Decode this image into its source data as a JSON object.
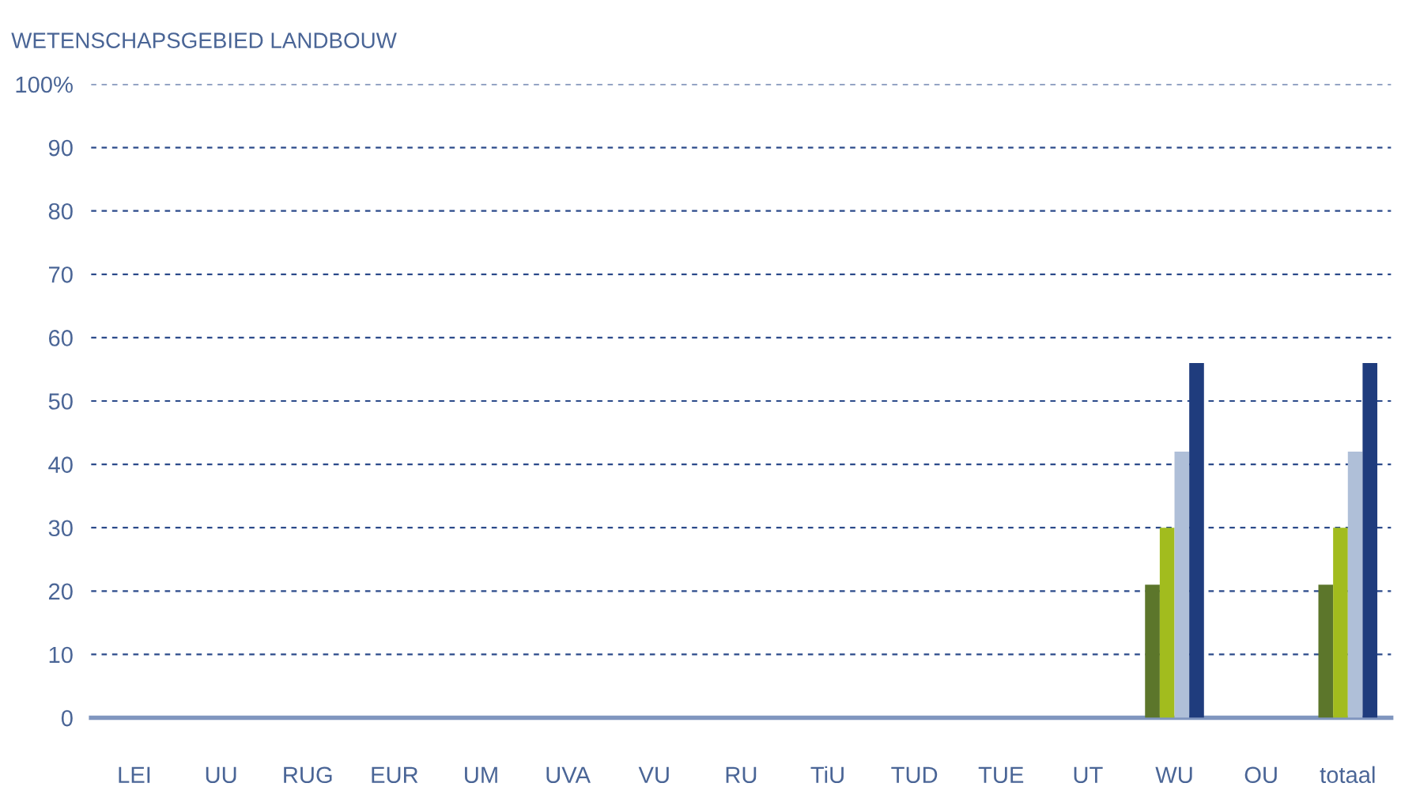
{
  "chart_data": {
    "type": "bar",
    "title": "WETENSCHAPSGEBIED LANDBOUW",
    "categories": [
      "LEI",
      "UU",
      "RUG",
      "EUR",
      "UM",
      "UVA",
      "VU",
      "RU",
      "TiU",
      "TUD",
      "TUE",
      "UT",
      "WU",
      "OU",
      "totaal"
    ],
    "series": [
      {
        "color": "#5c762b",
        "values": [
          0,
          0,
          0,
          0,
          0,
          0,
          0,
          0,
          0,
          0,
          0,
          0,
          21,
          0,
          21
        ]
      },
      {
        "color": "#a2bc1e",
        "values": [
          0,
          0,
          0,
          0,
          0,
          0,
          0,
          0,
          0,
          0,
          0,
          0,
          30,
          0,
          30
        ]
      },
      {
        "color": "#afbfd8",
        "values": [
          0,
          0,
          0,
          0,
          0,
          0,
          0,
          0,
          0,
          0,
          0,
          0,
          42,
          0,
          42
        ]
      },
      {
        "color": "#1f3c7d",
        "values": [
          0,
          0,
          0,
          0,
          0,
          0,
          0,
          0,
          0,
          0,
          0,
          0,
          56,
          0,
          56
        ]
      }
    ],
    "ylim": [
      0,
      100
    ],
    "yticks": [
      0,
      10,
      20,
      30,
      40,
      50,
      60,
      70,
      80,
      90,
      {
        "value": 100,
        "label": "100%"
      }
    ],
    "grid": "y",
    "legend": false
  }
}
